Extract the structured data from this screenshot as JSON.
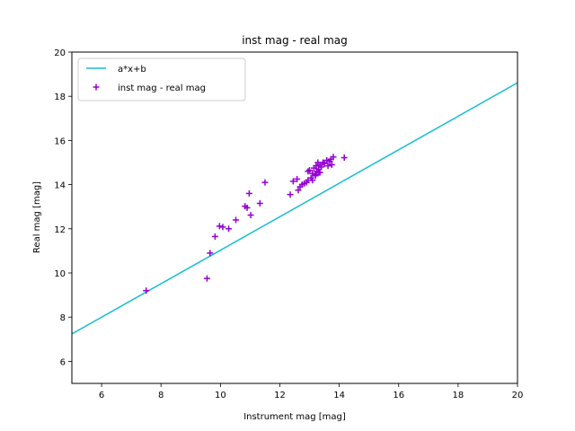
{
  "chart_data": {
    "type": "scatter",
    "title": "inst mag - real mag",
    "xlabel": "Instrument mag [mag]",
    "ylabel": "Real mag [mag]",
    "xlim": [
      5,
      20
    ],
    "ylim": [
      5,
      20
    ],
    "xticks": [
      6,
      8,
      10,
      12,
      14,
      16,
      18,
      20
    ],
    "yticks": [
      6,
      8,
      10,
      12,
      14,
      16,
      18,
      20
    ],
    "grid": false,
    "legend_position": "upper-left",
    "series": [
      {
        "name": "a*x+b",
        "kind": "line",
        "color": "#17becf",
        "x": [
          5,
          20
        ],
        "y": [
          7.24,
          18.61
        ]
      },
      {
        "name": "inst mag - real mag",
        "kind": "scatter",
        "marker": "+",
        "color": "#9400d3",
        "x": [
          7.5,
          9.55,
          9.65,
          9.82,
          9.97,
          10.08,
          10.28,
          10.52,
          10.83,
          10.9,
          10.97,
          11.02,
          11.33,
          11.5,
          12.35,
          12.45,
          12.58,
          12.62,
          12.68,
          12.75,
          12.82,
          12.9,
          12.95,
          13.0,
          13.05,
          13.1,
          13.15,
          13.2,
          13.22,
          13.25,
          13.28,
          13.3,
          13.32,
          13.35,
          13.4,
          13.45,
          13.5,
          13.58,
          13.62,
          13.68,
          13.72,
          13.75,
          13.8,
          14.17,
          12.95,
          13.1,
          13.2,
          13.35
        ],
        "y": [
          9.2,
          9.75,
          10.9,
          11.65,
          12.12,
          12.08,
          12.0,
          12.4,
          13.02,
          12.95,
          13.6,
          12.62,
          13.15,
          14.1,
          13.55,
          14.15,
          14.25,
          13.75,
          13.9,
          14.0,
          14.05,
          14.1,
          14.2,
          14.65,
          14.3,
          14.5,
          14.75,
          14.4,
          14.85,
          14.6,
          15.0,
          14.7,
          14.55,
          14.9,
          14.8,
          15.0,
          14.95,
          15.1,
          14.85,
          15.05,
          15.15,
          14.9,
          15.25,
          15.22,
          14.6,
          14.2,
          14.45,
          14.55
        ]
      }
    ]
  }
}
